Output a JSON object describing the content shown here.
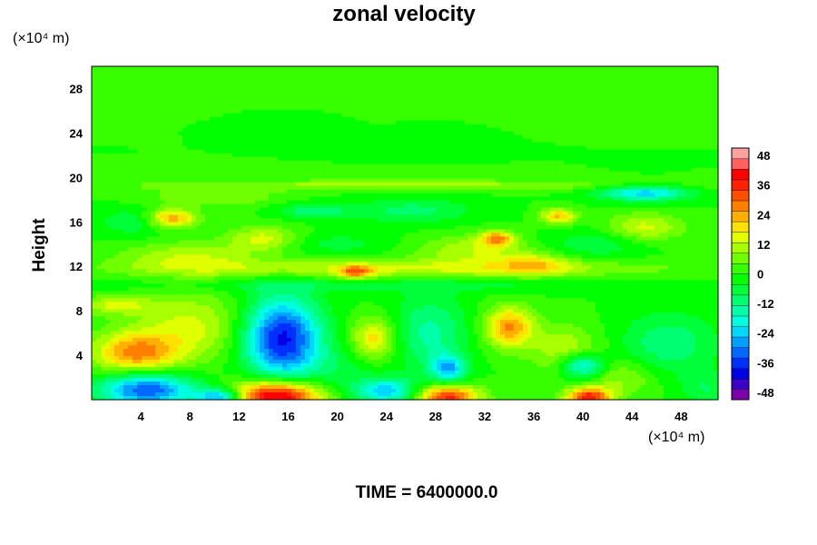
{
  "chart_data": {
    "type": "heatmap",
    "title": "zonal velocity",
    "ylabel": "Height",
    "y_unit_label": "(×10⁴ m)",
    "x_unit_label": "(×10⁴ m)",
    "x_ticks": [
      4,
      8,
      12,
      16,
      20,
      24,
      28,
      32,
      36,
      40,
      44,
      48
    ],
    "y_ticks": [
      4,
      8,
      12,
      16,
      20,
      24,
      28
    ],
    "xlim": [
      0,
      51
    ],
    "ylim": [
      0,
      30
    ],
    "colorbar": {
      "ticks": [
        48,
        36,
        24,
        12,
        0,
        -12,
        -24,
        -36,
        -48
      ],
      "range": [
        -51,
        51
      ],
      "colors": [
        "#7a00a8",
        "#3c00c8",
        "#0000e6",
        "#0030ff",
        "#0068ff",
        "#00a0ff",
        "#00d8ff",
        "#00ffe0",
        "#00ffa8",
        "#00ff70",
        "#00ff38",
        "#00ff00",
        "#38ff00",
        "#70ff00",
        "#a8ff00",
        "#e0ff00",
        "#ffe000",
        "#ffb000",
        "#ff8000",
        "#ff5000",
        "#ff2000",
        "#ff0000",
        "#ff6060",
        "#ffa0a0"
      ]
    },
    "features": [
      {
        "x": 15.5,
        "y": 5.5,
        "sx": 2.2,
        "sy": 2.6,
        "value": -40
      },
      {
        "x": 15.0,
        "y": 0.3,
        "sx": 2.6,
        "sy": 1.0,
        "value": 48
      },
      {
        "x": 29.0,
        "y": 0.2,
        "sx": 1.8,
        "sy": 0.8,
        "value": 36
      },
      {
        "x": 40.5,
        "y": 0.2,
        "sx": 1.3,
        "sy": 0.6,
        "value": 36
      },
      {
        "x": 4.5,
        "y": 0.9,
        "sx": 2.8,
        "sy": 1.1,
        "value": -34
      },
      {
        "x": 10.5,
        "y": 0.2,
        "sx": 1.4,
        "sy": 0.6,
        "value": -30
      },
      {
        "x": 24.0,
        "y": 0.8,
        "sx": 1.8,
        "sy": 0.8,
        "value": -24
      },
      {
        "x": 34.0,
        "y": 6.5,
        "sx": 1.4,
        "sy": 1.3,
        "value": 26
      },
      {
        "x": 23.0,
        "y": 5.5,
        "sx": 1.3,
        "sy": 1.3,
        "value": 20
      },
      {
        "x": 3.5,
        "y": 4.2,
        "sx": 2.4,
        "sy": 1.3,
        "value": 26
      },
      {
        "x": 27.5,
        "y": 6.0,
        "sx": 2.2,
        "sy": 2.4,
        "value": -14
      },
      {
        "x": 29.0,
        "y": 2.8,
        "sx": 1.0,
        "sy": 0.9,
        "value": -24
      },
      {
        "x": 40.0,
        "y": 3.0,
        "sx": 1.3,
        "sy": 0.8,
        "value": -26
      },
      {
        "x": 47.0,
        "y": 5.0,
        "sx": 2.8,
        "sy": 2.0,
        "value": -12
      },
      {
        "x": 38.5,
        "y": 4.5,
        "sx": 2.0,
        "sy": 1.6,
        "value": 12
      },
      {
        "x": 8.0,
        "y": 6.5,
        "sx": 3.2,
        "sy": 2.2,
        "value": 14
      },
      {
        "x": 2.0,
        "y": 8.5,
        "sx": 2.0,
        "sy": 0.6,
        "value": 14
      },
      {
        "x": 20.0,
        "y": 2.5,
        "sx": 2.2,
        "sy": 1.8,
        "value": -6
      },
      {
        "x": 43.0,
        "y": 2.0,
        "sx": 2.2,
        "sy": 1.2,
        "value": 10
      },
      {
        "x": 50.0,
        "y": 1.0,
        "sx": 1.5,
        "sy": 1.0,
        "value": -8
      },
      {
        "x": 25.5,
        "y": 11.8,
        "sx": 14.0,
        "sy": 0.6,
        "value": 14
      },
      {
        "x": 8.0,
        "y": 12.8,
        "sx": 4.0,
        "sy": 1.0,
        "value": 12
      },
      {
        "x": 21.5,
        "y": 11.5,
        "sx": 1.0,
        "sy": 0.4,
        "value": 22
      },
      {
        "x": 31.0,
        "y": 13.5,
        "sx": 3.2,
        "sy": 0.9,
        "value": 12
      },
      {
        "x": 36.0,
        "y": 12.2,
        "sx": 2.2,
        "sy": 0.7,
        "value": 14
      },
      {
        "x": 25.5,
        "y": 10.3,
        "sx": 18.0,
        "sy": 0.45,
        "value": -6
      },
      {
        "x": 6.5,
        "y": 16.3,
        "sx": 1.4,
        "sy": 0.6,
        "value": 26
      },
      {
        "x": 33.0,
        "y": 14.5,
        "sx": 1.0,
        "sy": 0.5,
        "value": 24
      },
      {
        "x": 38.0,
        "y": 16.5,
        "sx": 1.0,
        "sy": 0.5,
        "value": 22
      },
      {
        "x": 45.0,
        "y": 15.5,
        "sx": 2.2,
        "sy": 0.9,
        "value": 14
      },
      {
        "x": 14.0,
        "y": 14.5,
        "sx": 2.0,
        "sy": 0.8,
        "value": 14
      },
      {
        "x": 45.0,
        "y": 18.6,
        "sx": 2.6,
        "sy": 0.5,
        "value": -24
      },
      {
        "x": 18.0,
        "y": 17.0,
        "sx": 2.0,
        "sy": 0.5,
        "value": -12
      },
      {
        "x": 3.5,
        "y": 16.0,
        "sx": 2.2,
        "sy": 0.9,
        "value": -8
      },
      {
        "x": 26.0,
        "y": 17.0,
        "sx": 3.5,
        "sy": 0.8,
        "value": -10
      },
      {
        "x": 41.0,
        "y": 14.0,
        "sx": 2.8,
        "sy": 0.9,
        "value": -8
      },
      {
        "x": 20.0,
        "y": 14.0,
        "sx": 3.0,
        "sy": 0.7,
        "value": -6
      },
      {
        "x": 25.5,
        "y": 19.3,
        "sx": 16.0,
        "sy": 0.35,
        "value": 10
      },
      {
        "x": 10.0,
        "y": 18.2,
        "sx": 4.0,
        "sy": 0.6,
        "value": 8
      }
    ]
  }
}
